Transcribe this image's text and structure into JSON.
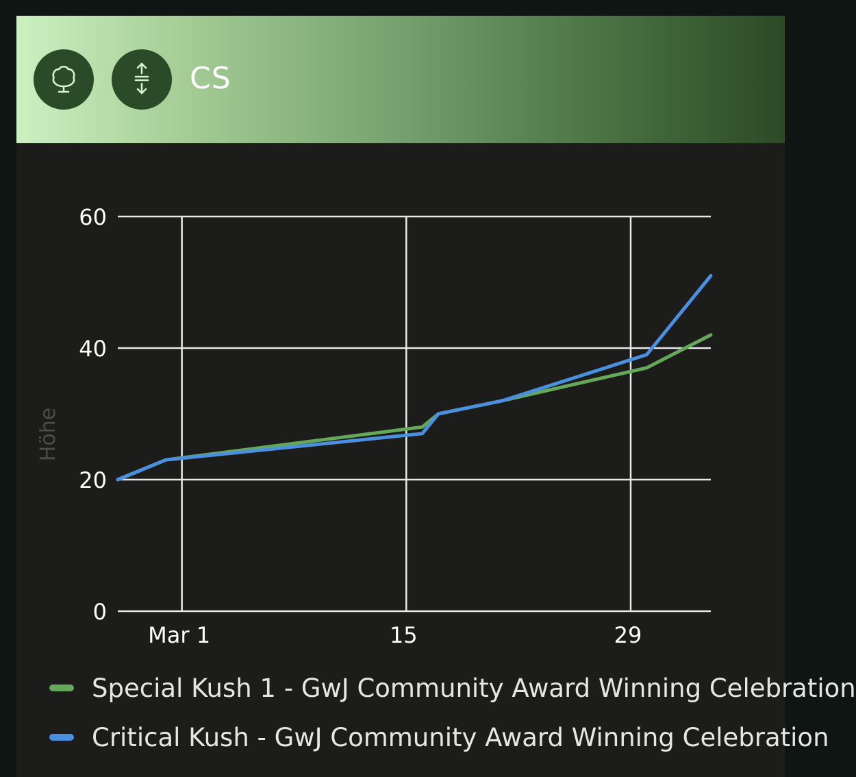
{
  "header": {
    "title": "CS",
    "left_icon": "tree-icon",
    "right_icon": "height-arrows-icon",
    "icon_bg_color": "#2b4a28",
    "icon_fg_color": "#d8f3c8"
  },
  "chart_data": {
    "type": "line",
    "ylabel": "Höhe",
    "xlabel": "",
    "ylim": [
      0,
      60
    ],
    "y_ticks": [
      "0",
      "20",
      "40",
      "60"
    ],
    "x_ticks": [
      "Mar 1",
      "15",
      "29"
    ],
    "x_tick_dates": [
      "2024-03-01",
      "2024-03-15",
      "2024-03-29"
    ],
    "xlim": [
      "2024-02-26",
      "2024-04-03"
    ],
    "grid": true,
    "legend_position": "bottom",
    "series": [
      {
        "name": "Special Kush 1 - GwJ Community Award Winning Celebration",
        "color": "#66a85a",
        "points": [
          {
            "x": "2024-02-26",
            "y": 20
          },
          {
            "x": "2024-02-29",
            "y": 23
          },
          {
            "x": "2024-03-16",
            "y": 28
          },
          {
            "x": "2024-03-17",
            "y": 30
          },
          {
            "x": "2024-03-21",
            "y": 32
          },
          {
            "x": "2024-03-30",
            "y": 37
          },
          {
            "x": "2024-04-03",
            "y": 42
          }
        ]
      },
      {
        "name": "Critical Kush - GwJ Community Award Winning Celebration",
        "color": "#4a8fe0",
        "points": [
          {
            "x": "2024-02-26",
            "y": 20
          },
          {
            "x": "2024-02-29",
            "y": 23
          },
          {
            "x": "2024-03-16",
            "y": 27
          },
          {
            "x": "2024-03-17",
            "y": 30
          },
          {
            "x": "2024-03-21",
            "y": 32
          },
          {
            "x": "2024-03-30",
            "y": 39
          },
          {
            "x": "2024-04-03",
            "y": 51
          }
        ]
      }
    ]
  },
  "legend": {
    "items": [
      {
        "label": "Special Kush 1 - GwJ Community Award Winning Celebration",
        "color": "#66a85a"
      },
      {
        "label": "Critical Kush - GwJ Community Award Winning Celebration",
        "color": "#4a8fe0"
      }
    ]
  },
  "colors": {
    "card_bg": "#1c1d1a",
    "page_bg": "#0f1512",
    "grid": "#e8e8e8",
    "tick_text": "#ffffff",
    "ylabel_text": "#4a4d48"
  }
}
